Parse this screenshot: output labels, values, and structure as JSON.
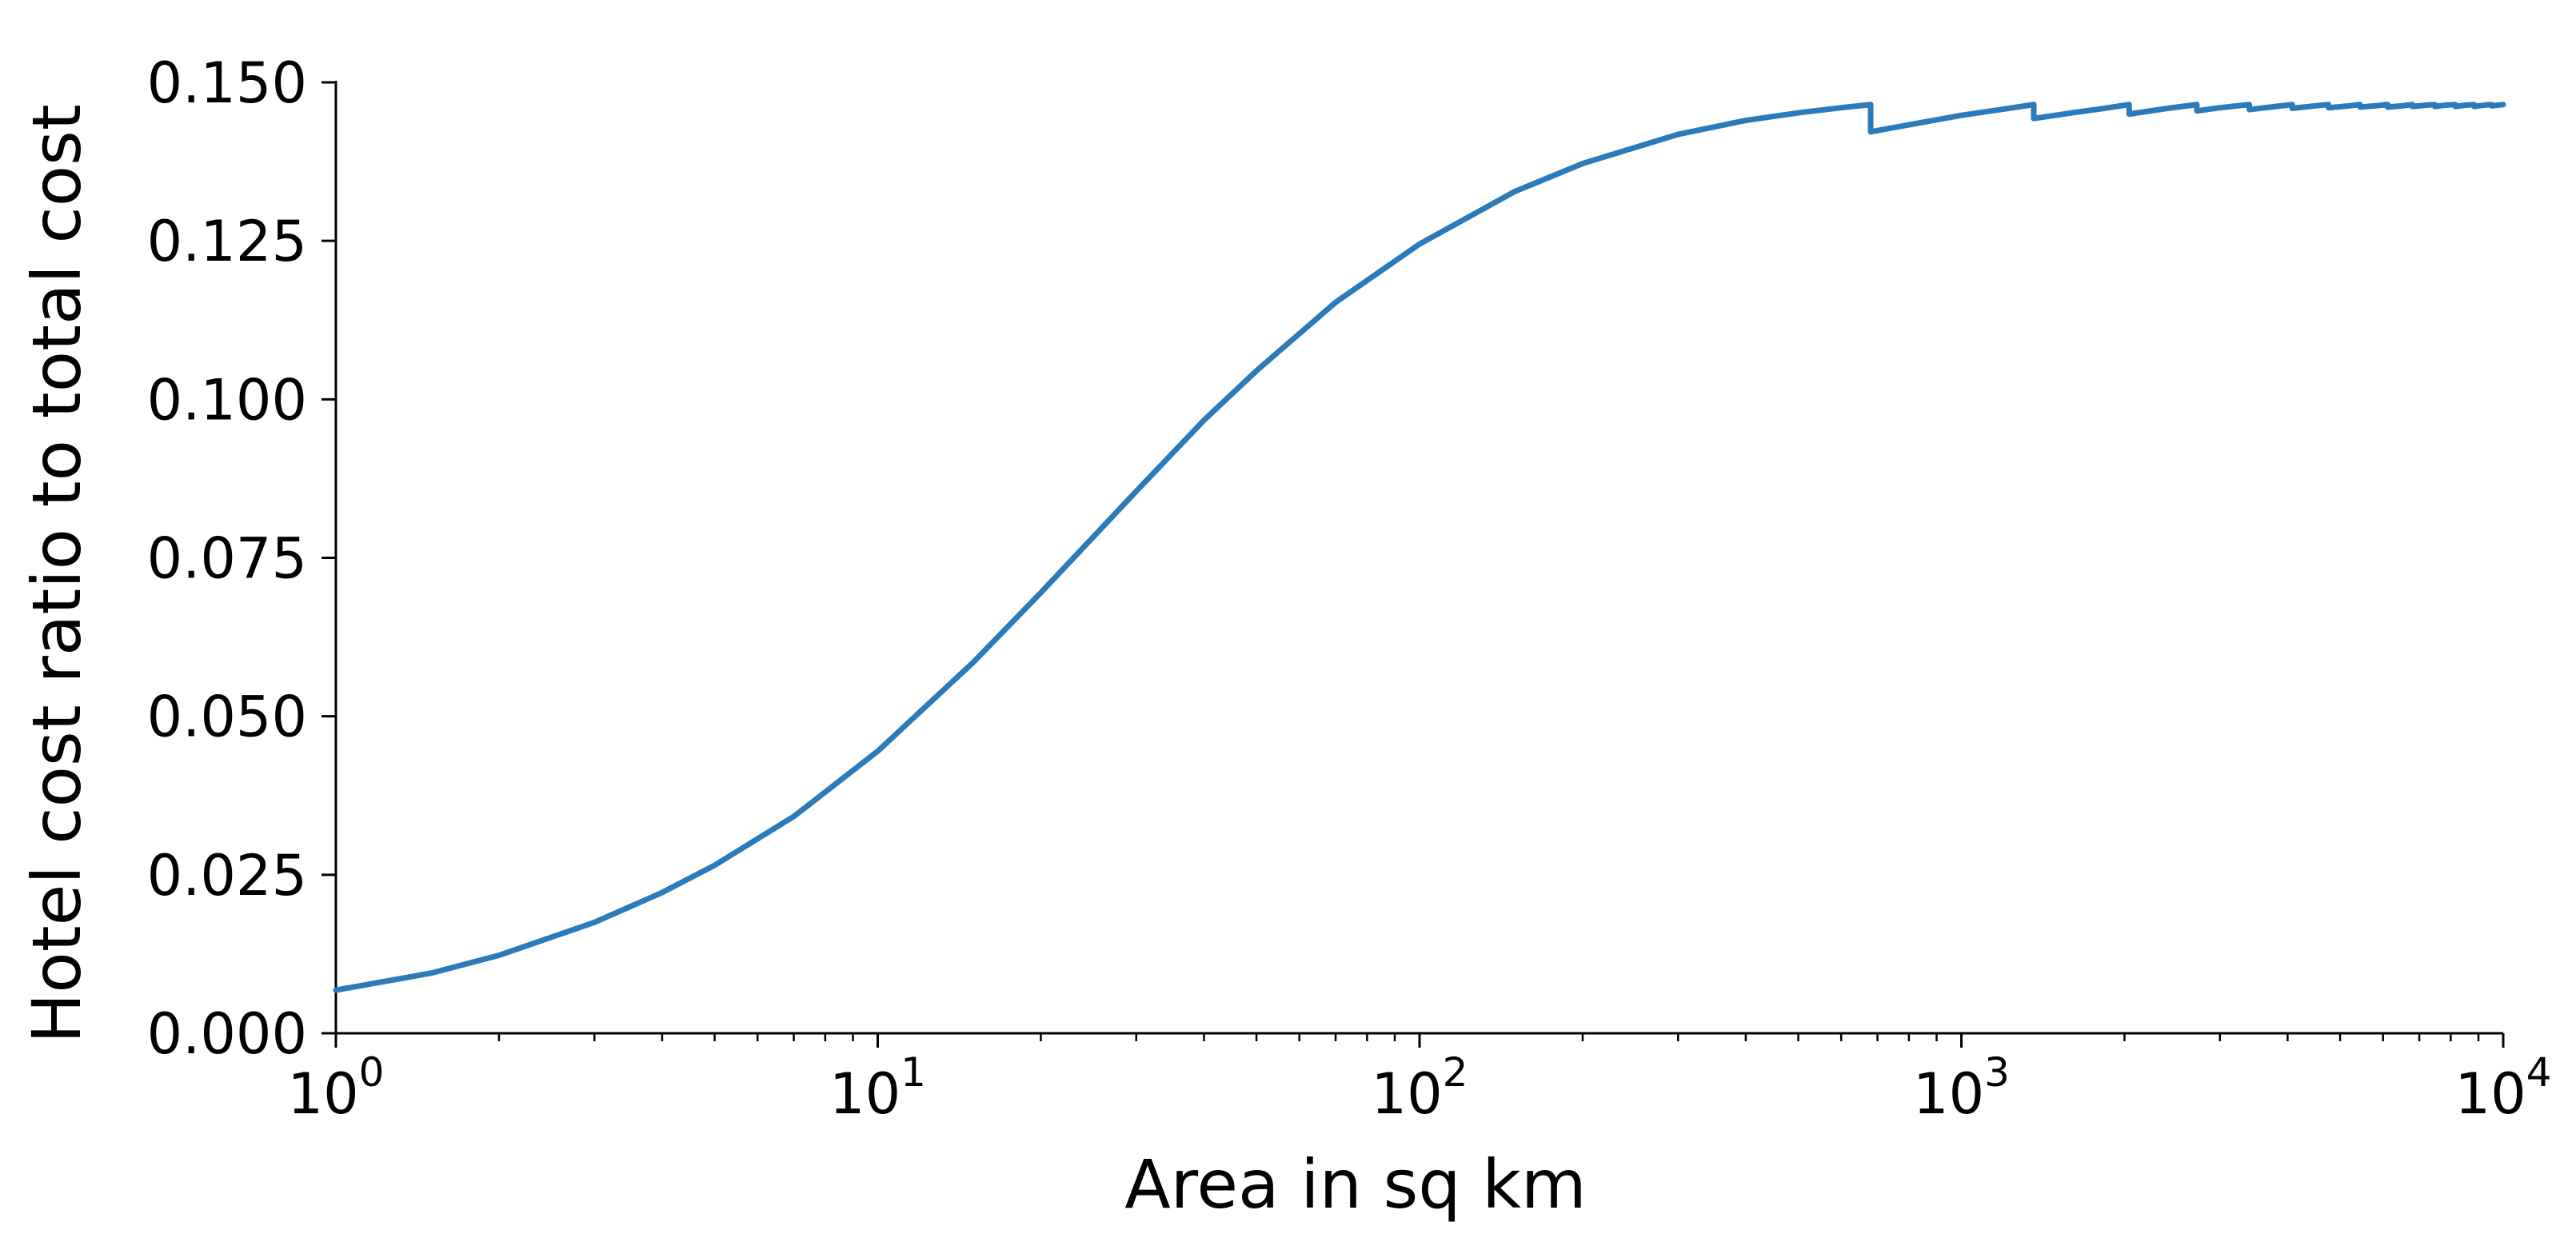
{
  "chart_data": {
    "type": "line",
    "xlabel": "Area in sq km",
    "ylabel": "Hotel cost ratio to total cost",
    "x_scale": "log",
    "xlim": [
      1,
      10000
    ],
    "ylim": [
      0,
      0.15
    ],
    "x_ticks": [
      {
        "value": 1,
        "base": "10",
        "exp": "0"
      },
      {
        "value": 10,
        "base": "10",
        "exp": "1"
      },
      {
        "value": 100,
        "base": "10",
        "exp": "2"
      },
      {
        "value": 1000,
        "base": "10",
        "exp": "3"
      },
      {
        "value": 10000,
        "base": "10",
        "exp": "4"
      }
    ],
    "y_ticks": [
      {
        "value": 0,
        "label": "0.000"
      },
      {
        "value": 0.025,
        "label": "0.025"
      },
      {
        "value": 0.05,
        "label": "0.050"
      },
      {
        "value": 0.075,
        "label": "0.075"
      },
      {
        "value": 0.1,
        "label": "0.100"
      },
      {
        "value": 0.125,
        "label": "0.125"
      },
      {
        "value": 0.15,
        "label": "0.150"
      }
    ],
    "grid": false,
    "series": [
      {
        "color": "#2b7bba",
        "x": [
          1,
          1.5,
          2,
          3,
          4,
          5,
          7,
          10,
          15,
          20,
          30,
          40,
          50,
          70,
          100,
          150,
          200,
          300,
          400,
          500,
          600,
          680,
          680,
          800,
          1000,
          1200,
          1360,
          1360,
          1600,
          1800,
          2040,
          2040,
          2400,
          2720,
          2720,
          3000,
          3400,
          3400,
          3800,
          4080,
          4080,
          4500,
          4760,
          4760,
          5200,
          5440,
          5440,
          5800,
          6120,
          6120,
          6500,
          6800,
          6800,
          7200,
          7480,
          7480,
          7800,
          8160,
          8160,
          8500,
          8840,
          8840,
          9200,
          9520,
          9520,
          10000
        ],
        "y": [
          0.0068,
          0.0095,
          0.0123,
          0.0175,
          0.0222,
          0.0265,
          0.0342,
          0.0445,
          0.0585,
          0.0695,
          0.0855,
          0.0967,
          0.1045,
          0.1153,
          0.1245,
          0.1328,
          0.1372,
          0.1418,
          0.144,
          0.1452,
          0.146,
          0.1465,
          0.1422,
          0.1433,
          0.1448,
          0.1458,
          0.1465,
          0.1443,
          0.1452,
          0.1458,
          0.1465,
          0.145,
          0.1459,
          0.1465,
          0.1455,
          0.146,
          0.1465,
          0.1457,
          0.1462,
          0.1465,
          0.1459,
          0.1463,
          0.1465,
          0.146,
          0.1463,
          0.1465,
          0.1461,
          0.1463,
          0.1465,
          0.1461,
          0.1463,
          0.1465,
          0.1462,
          0.1464,
          0.1465,
          0.1462,
          0.1464,
          0.1465,
          0.1462,
          0.1464,
          0.1465,
          0.1462,
          0.1464,
          0.1465,
          0.1463,
          0.1465
        ]
      }
    ]
  }
}
